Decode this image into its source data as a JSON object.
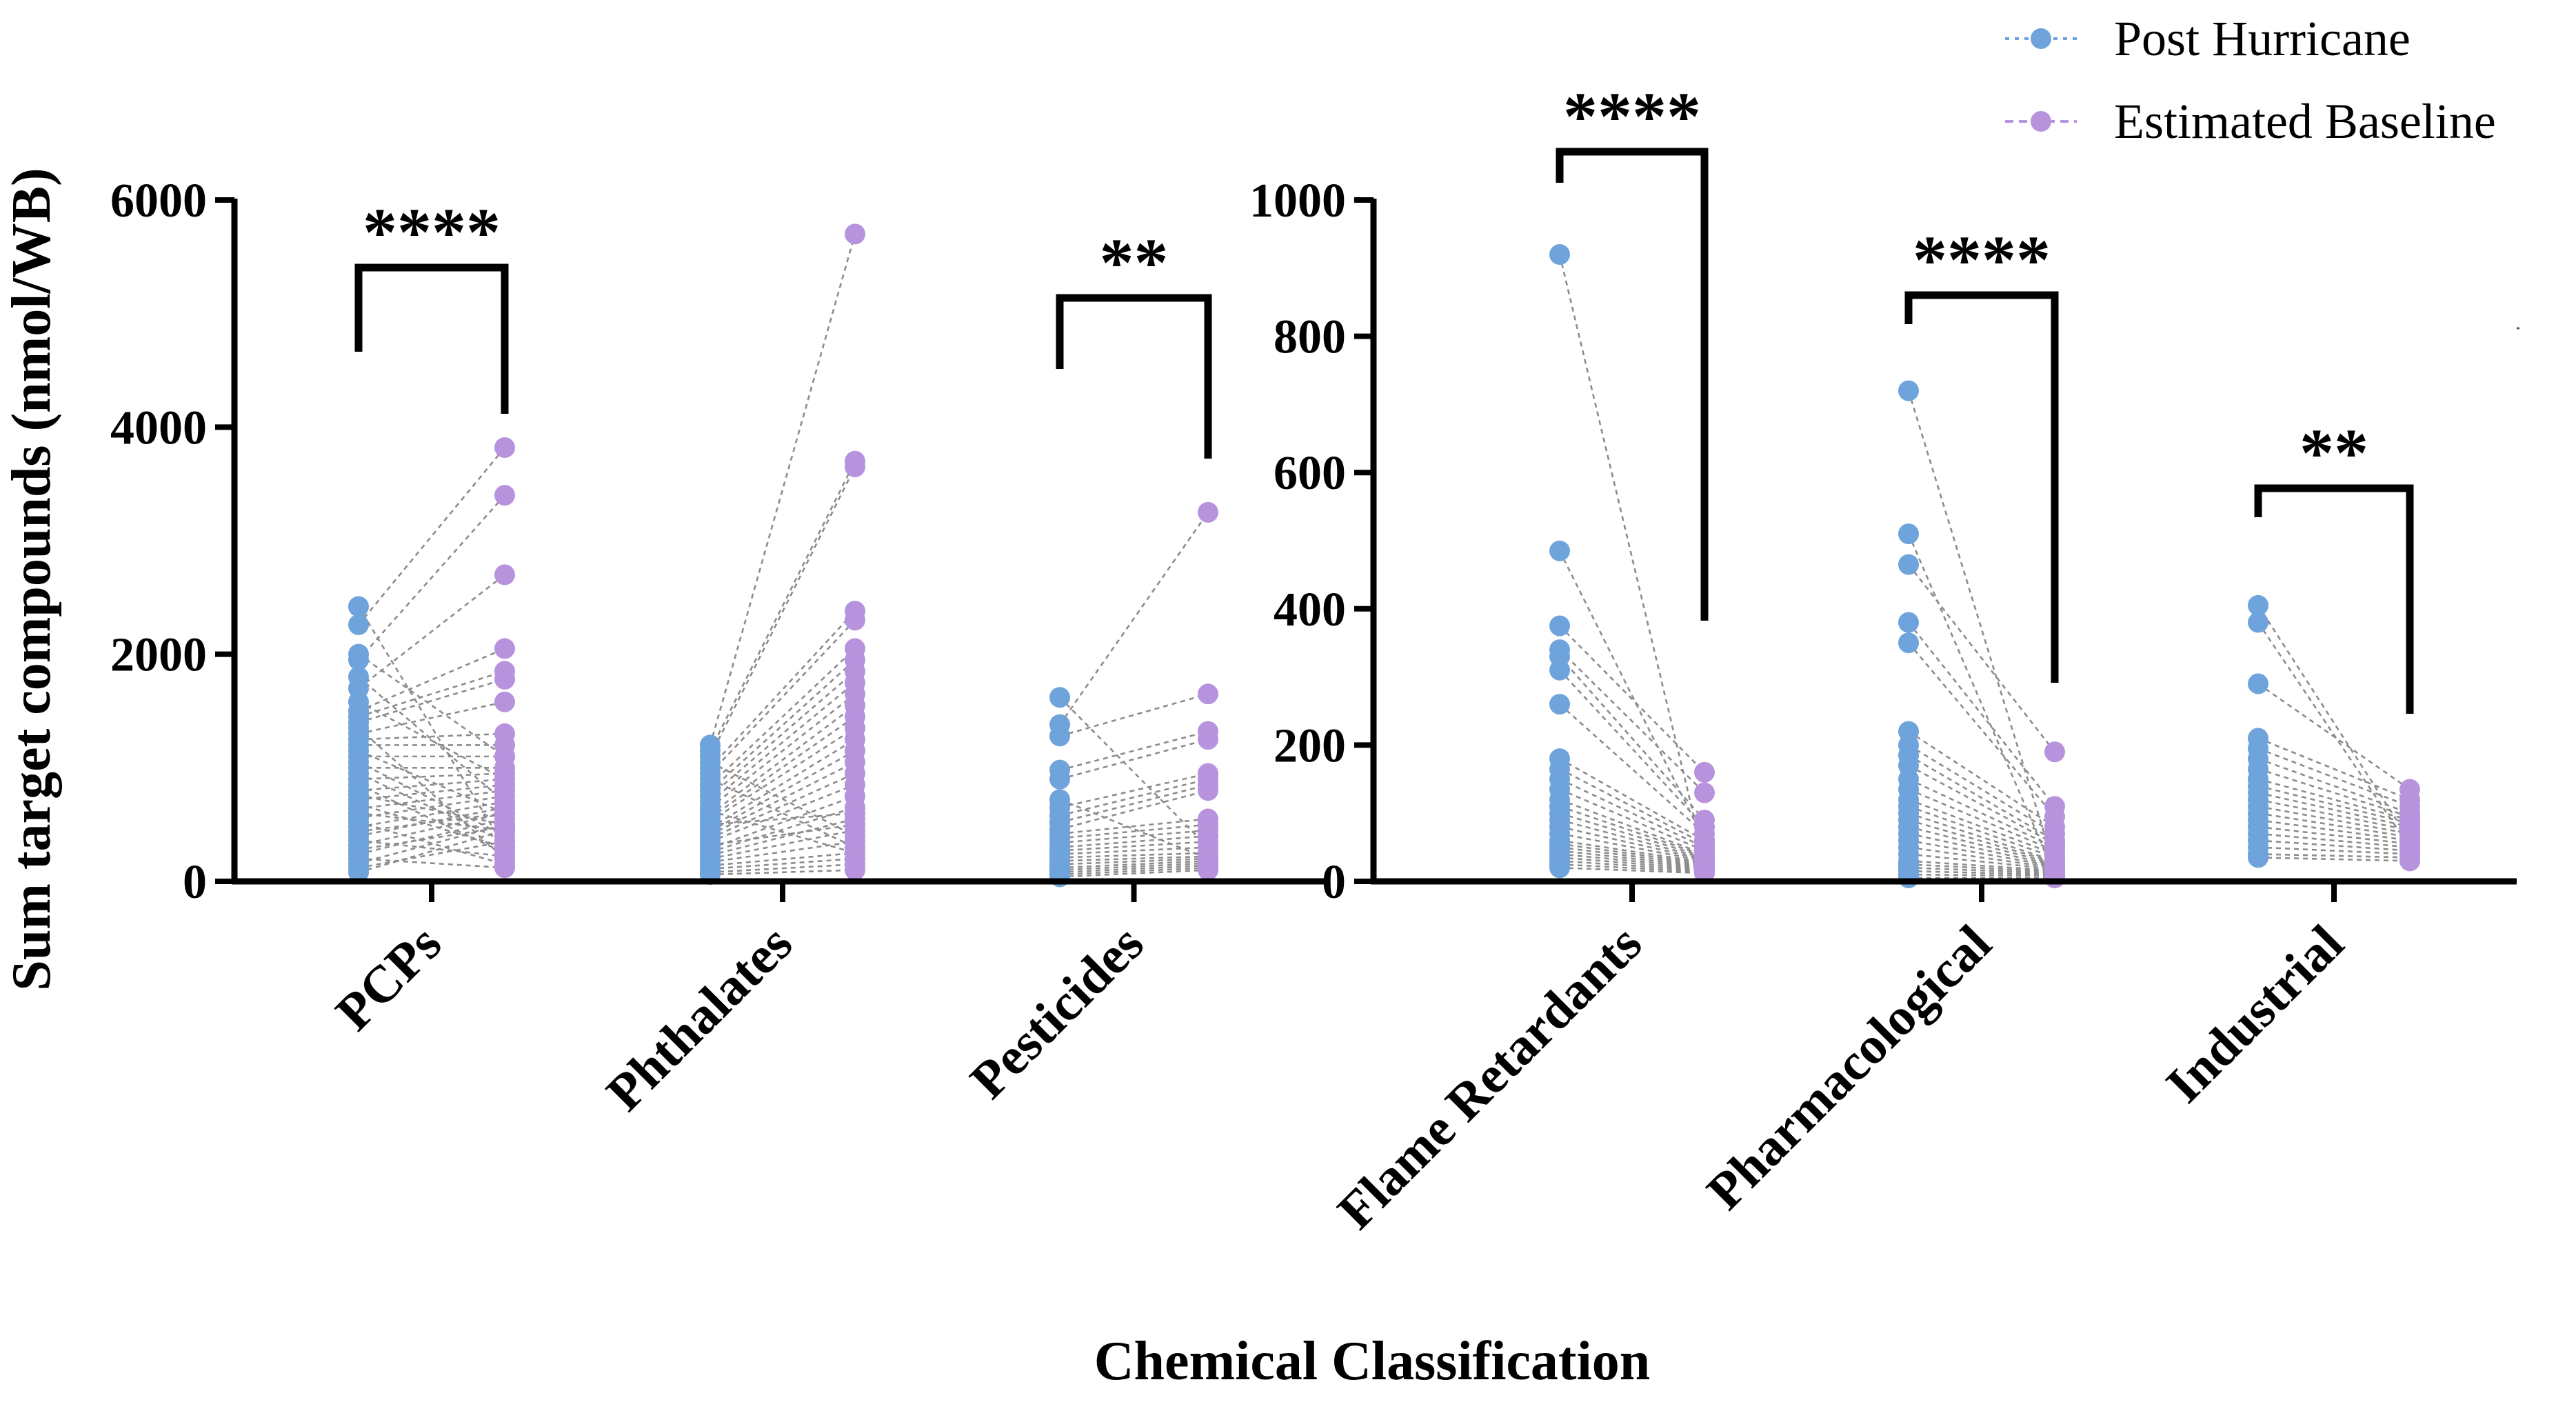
{
  "chart_data": {
    "type": "scatter",
    "subtype": "paired-dot-plot",
    "ylabel": "Sum target compounds (nmol/WB)",
    "xlabel": "Chemical Classification",
    "legend": {
      "placement": "top-right",
      "entries": [
        {
          "name": "Post Hurricane",
          "color": "#6fa3dc"
        },
        {
          "name": "Estimated Baseline",
          "color": "#b893dd"
        }
      ]
    },
    "link_color": "#8c8c8c",
    "panels": [
      {
        "name": "left",
        "ylim": [
          0,
          6000
        ],
        "yticks": [
          "0",
          "2000",
          "4000",
          "6000"
        ],
        "groups": [
          {
            "category": "PCPs",
            "significance": "****",
            "post": [
              2420,
              2260,
              2000,
              1950,
              1800,
              1700,
              1580,
              1500,
              1450,
              1400,
              1350,
              1300,
              1250,
              1200,
              1150,
              1100,
              1050,
              1000,
              950,
              900,
              850,
              800,
              760,
              720,
              680,
              640,
              600,
              560,
              520,
              480,
              440,
              400,
              360,
              320,
              280,
              240,
              200,
              160,
              120,
              80
            ],
            "baseline": [
              300,
              3820,
              1100,
              3400,
              700,
              2700,
              900,
              2050,
              1850,
              1780,
              200,
              1580,
              1300,
              1200,
              600,
              1100,
              400,
              1000,
              350,
              950,
              250,
              900,
              500,
              850,
              300,
              800,
              450,
              750,
              150,
              700,
              600,
              650,
              220,
              600,
              480,
              550,
              120,
              500,
              350,
              450
            ]
          },
          {
            "category": "Phthalates",
            "significance": "",
            "post": [
              1200,
              1150,
              1100,
              1050,
              1000,
              950,
              900,
              850,
              800,
              750,
              700,
              650,
              620,
              590,
              560,
              530,
              500,
              470,
              440,
              410,
              380,
              350,
              320,
              290,
              260,
              230,
              200,
              170,
              140,
              110,
              80,
              60
            ],
            "baseline": [
              5700,
              3700,
              3650,
              400,
              2380,
              2300,
              300,
              2050,
              1950,
              1850,
              1750,
              1650,
              250,
              1550,
              1450,
              1350,
              600,
              1250,
              1150,
              1050,
              950,
              850,
              500,
              750,
              650,
              550,
              450,
              350,
              250,
              200,
              150,
              100
            ]
          },
          {
            "category": "Pesticides",
            "significance": "**",
            "post": [
              1620,
              1380,
              1280,
              980,
              900,
              720,
              650,
              580,
              520,
              460,
              420,
              380,
              340,
              300,
              270,
              240,
              210,
              180,
              150,
              120,
              100,
              80,
              60,
              40
            ],
            "baseline": [
              300,
              3250,
              1650,
              1320,
              1250,
              200,
              950,
              900,
              850,
              800,
              550,
              500,
              450,
              400,
              350,
              300,
              250,
              220,
              200,
              180,
              160,
              140,
              120,
              100
            ]
          }
        ]
      },
      {
        "name": "right",
        "ylim": [
          0,
          1000
        ],
        "yticks": [
          "0",
          "200",
          "400",
          "600",
          "800",
          "1000"
        ],
        "groups": [
          {
            "category": "Flame Retardants",
            "significance": "****",
            "post": [
              920,
              485,
              375,
              340,
              330,
              310,
              260,
              180,
              165,
              150,
              135,
              120,
              110,
              100,
              90,
              80,
              70,
              60,
              55,
              50,
              45,
              40,
              35,
              30,
              25,
              20
            ],
            "baseline": [
              30,
              60,
              160,
              130,
              90,
              80,
              70,
              60,
              55,
              50,
              45,
              40,
              38,
              36,
              34,
              32,
              30,
              28,
              26,
              24,
              22,
              20,
              18,
              16,
              14,
              12
            ]
          },
          {
            "category": "Pharmacological",
            "significance": "****",
            "post": [
              720,
              510,
              465,
              380,
              350,
              220,
              200,
              185,
              170,
              150,
              135,
              120,
              110,
              100,
              90,
              80,
              70,
              60,
              50,
              40,
              30,
              25,
              20,
              15,
              10,
              5
            ],
            "baseline": [
              20,
              10,
              190,
              110,
              95,
              80,
              70,
              60,
              55,
              50,
              45,
              40,
              35,
              30,
              28,
              26,
              24,
              22,
              20,
              18,
              16,
              14,
              12,
              10,
              8,
              5
            ]
          },
          {
            "category": "Industrial",
            "significance": "**",
            "post": [
              405,
              380,
              290,
              210,
              195,
              180,
              165,
              150,
              140,
              130,
              120,
              110,
              100,
              90,
              80,
              70,
              60,
              50,
              40,
              35
            ],
            "baseline": [
              60,
              50,
              135,
              120,
              110,
              100,
              95,
              90,
              85,
              80,
              75,
              70,
              65,
              60,
              55,
              50,
              45,
              40,
              35,
              30
            ]
          }
        ]
      }
    ]
  }
}
